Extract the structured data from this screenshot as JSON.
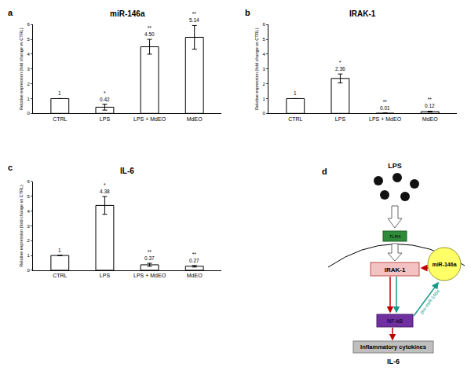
{
  "chart_data": [
    {
      "type": "bar",
      "title": "miR-146a",
      "annotations": [
        "a"
      ],
      "y_label": "Relative expression (fold change vs CTRL)",
      "categories": [
        "CTRL",
        "LPS",
        "LPS + MdEO",
        "MdEO"
      ],
      "values": [
        1,
        0.42,
        4.5,
        5.14
      ],
      "value_labels": [
        "1",
        "0.42",
        "4.50",
        "5.14"
      ],
      "errors": [
        null,
        0.2,
        0.5,
        0.8
      ],
      "significance": [
        null,
        "*",
        "**",
        "**"
      ],
      "color": "#ffffff",
      "ylim": [
        0,
        6
      ],
      "yticks": [
        0,
        1,
        2,
        3,
        4,
        5,
        6
      ],
      "grid": false,
      "data_labels": true
    },
    {
      "type": "bar",
      "title": "IRAK-1",
      "annotations": [
        "b"
      ],
      "y_label": "Relative expression (fold change vs CTRL)",
      "categories": [
        "CTRL",
        "LPS",
        "LPS + MdEO",
        "MdEO"
      ],
      "values": [
        1,
        2.36,
        0.01,
        0.12
      ],
      "value_labels": [
        "1",
        "2.36",
        "0.01",
        "0.12"
      ],
      "errors": [
        null,
        0.3,
        0.02,
        0.03
      ],
      "significance": [
        null,
        "*",
        "**",
        "**"
      ],
      "color": "#ffffff",
      "ylim": [
        0,
        6
      ],
      "yticks": [
        0,
        1,
        2,
        3,
        4,
        5,
        6
      ],
      "grid": false,
      "data_labels": true
    },
    {
      "type": "bar",
      "title": "IL-6",
      "annotations": [
        "c"
      ],
      "y_label": "Relative expression (fold change vs CTRL)",
      "categories": [
        "CTRL",
        "LPS",
        "LPS + MdEO",
        "MdEO"
      ],
      "values": [
        1,
        4.38,
        0.37,
        0.27
      ],
      "value_labels": [
        "1",
        "4.38",
        "0.37",
        "0.27"
      ],
      "errors": [
        null,
        0.6,
        0.1,
        0.05
      ],
      "significance": [
        null,
        "*",
        "**",
        "**"
      ],
      "color": "#ffffff",
      "ylim": [
        0,
        6
      ],
      "yticks": [
        0,
        1,
        2,
        3,
        4,
        5,
        6
      ],
      "grid": false,
      "data_labels": true
    }
  ],
  "diagram": {
    "panel": "d",
    "stimulus": "LPS",
    "receptor": "TLR4",
    "kinase": "IRAK-1",
    "mirna": "miR-146a",
    "factor": "NF-kB",
    "feedback_label": "pre-miR-146a",
    "output": "Inflammatory cytokines",
    "cytokine": "IL-6"
  }
}
